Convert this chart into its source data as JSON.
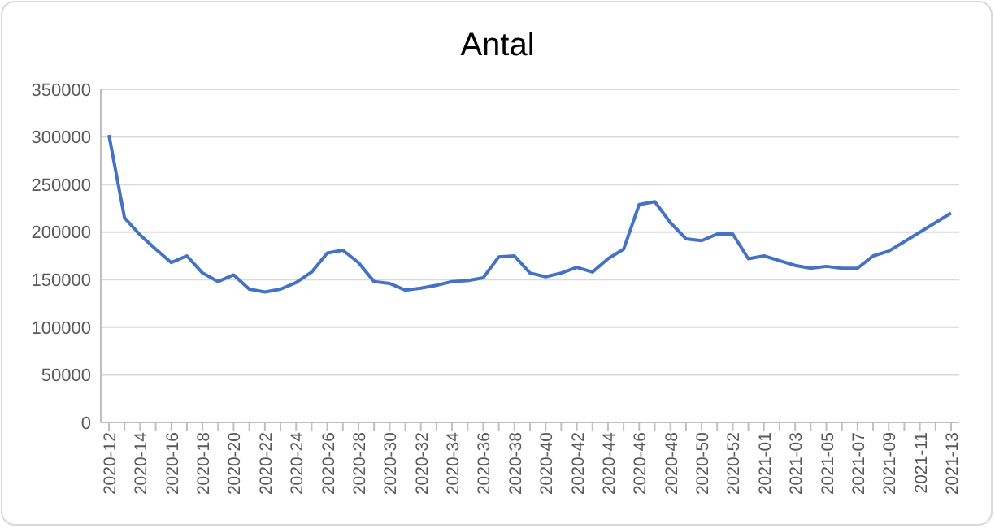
{
  "chart_data": {
    "type": "line",
    "title": "Antal",
    "categories": [
      "2020-12",
      null,
      "2020-14",
      null,
      "2020-16",
      null,
      "2020-18",
      null,
      "2020-20",
      null,
      "2020-22",
      null,
      "2020-24",
      null,
      "2020-26",
      null,
      "2020-28",
      null,
      "2020-30",
      null,
      "2020-32",
      null,
      "2020-34",
      null,
      "2020-36",
      null,
      "2020-38",
      null,
      "2020-40",
      null,
      "2020-42",
      null,
      "2020-44",
      null,
      "2020-46",
      null,
      "2020-48",
      null,
      "2020-50",
      null,
      "2020-52",
      null,
      "2021-01",
      null,
      "2021-03",
      null,
      "2021-05",
      null,
      "2021-07",
      null,
      "2021-09",
      null,
      "2021-11",
      null,
      "2021-13"
    ],
    "series": [
      {
        "color": "#4472c4",
        "values": [
          302000,
          215000,
          197000,
          182000,
          168000,
          175000,
          157000,
          148000,
          155000,
          140000,
          137000,
          140000,
          147000,
          158000,
          178000,
          181000,
          168000,
          148000,
          146000,
          139000,
          141000,
          144000,
          148000,
          149000,
          152000,
          174000,
          175000,
          157000,
          153000,
          157000,
          163000,
          158000,
          172000,
          182000,
          229000,
          232000,
          210000,
          193000,
          191000,
          198000,
          198000,
          172000,
          175000,
          170000,
          165000,
          162000,
          164000,
          162000,
          162000,
          175000,
          180000,
          190000,
          200000,
          210000,
          220000
        ]
      }
    ],
    "ylim": [
      0,
      350000
    ],
    "yticks": [
      0,
      50000,
      100000,
      150000,
      200000,
      250000,
      300000,
      350000
    ],
    "grid": "y",
    "marker": "none",
    "line_style": "solid"
  }
}
